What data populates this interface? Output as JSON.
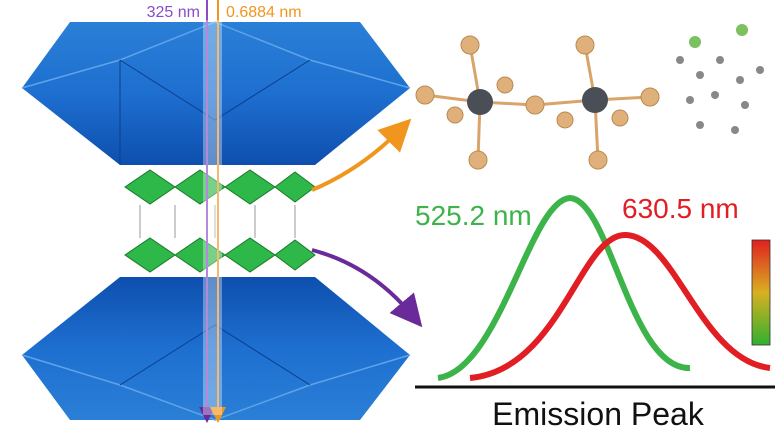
{
  "beam_labels": {
    "excitation": "325 nm",
    "xray": "0.6884 nm"
  },
  "emission": {
    "green_peak": "525.2 nm",
    "red_peak": "630.5 nm",
    "axis_label": "Emission Peak"
  }
}
